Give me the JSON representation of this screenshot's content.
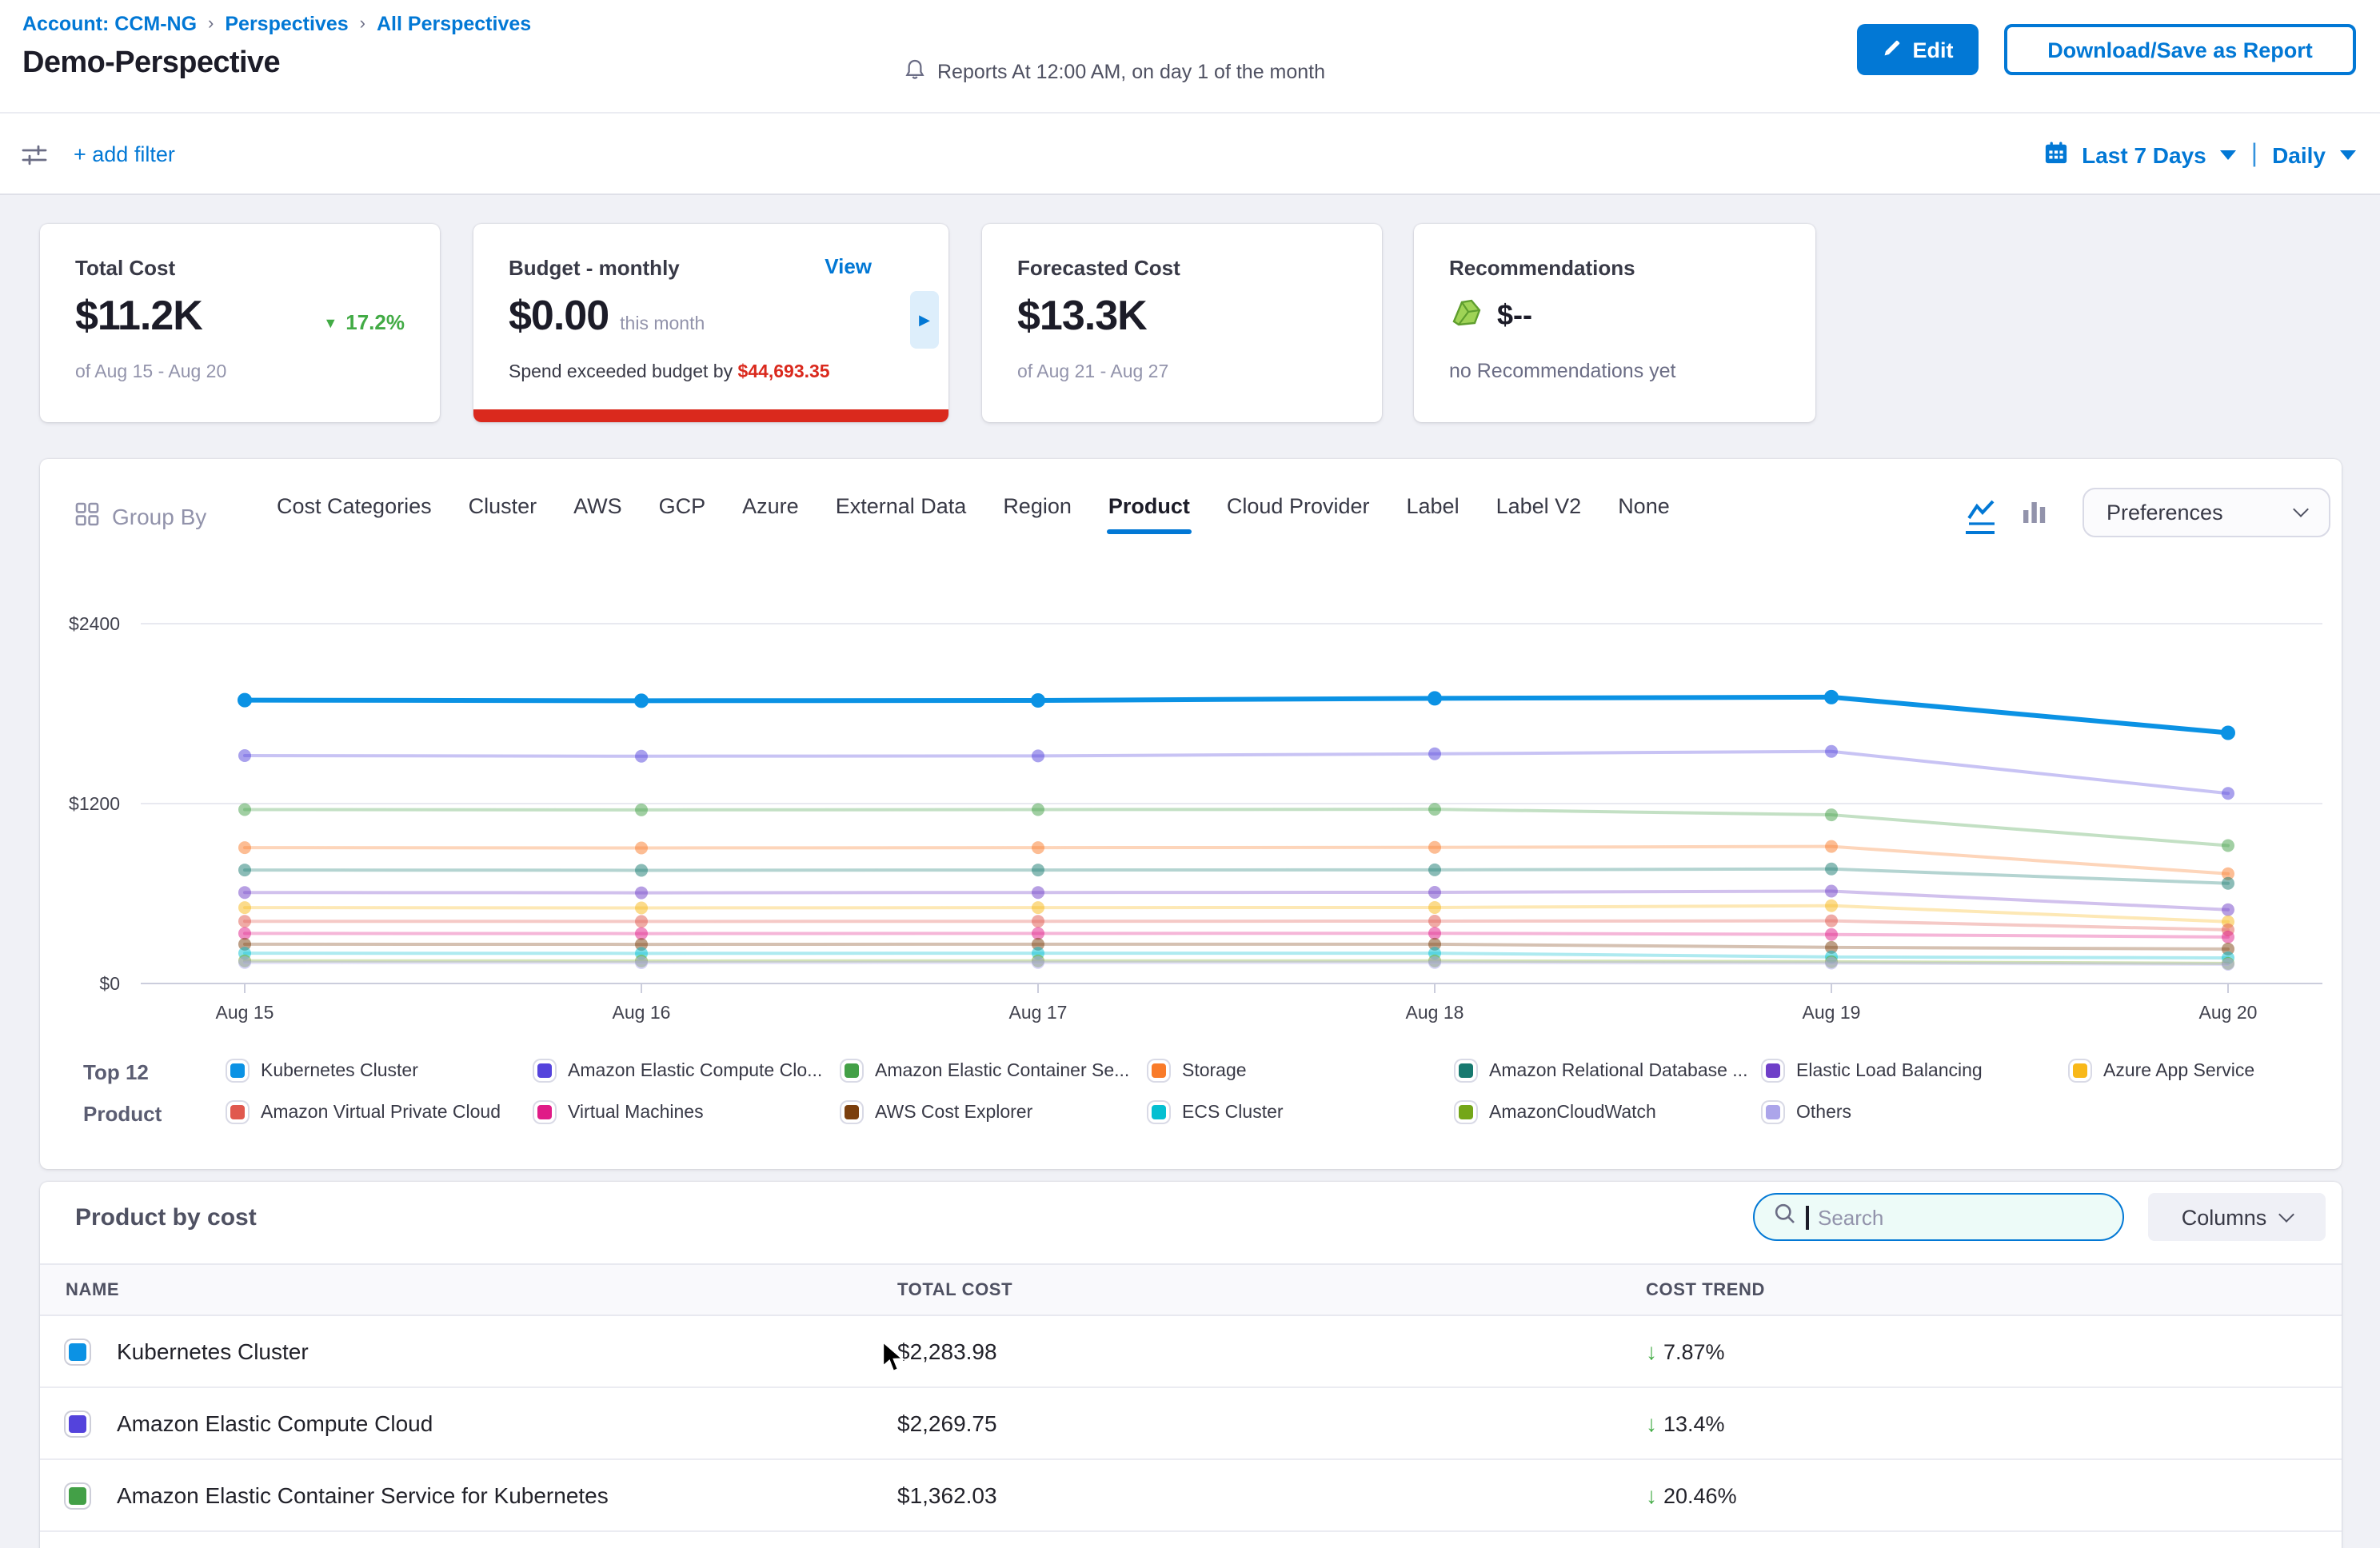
{
  "header": {
    "breadcrumb": [
      {
        "label": "Account: CCM-NG"
      },
      {
        "label": "Perspectives"
      },
      {
        "label": "All Perspectives"
      }
    ],
    "title": "Demo-Perspective",
    "reports_note": "Reports At 12:00 AM, on day 1 of the month",
    "edit_label": "Edit",
    "download_label": "Download/Save as Report"
  },
  "filter_bar": {
    "add_filter_label": "+ add filter",
    "date_range_label": "Last 7 Days",
    "granularity_label": "Daily"
  },
  "cards": {
    "total_cost": {
      "title": "Total Cost",
      "value": "$11.2K",
      "delta": "17.2%",
      "delta_direction": "down",
      "delta_color": "#42ab45",
      "period": "of Aug 15 - Aug 20"
    },
    "budget": {
      "title": "Budget - monthly",
      "view_label": "View",
      "value": "$0.00",
      "value_suffix": "this month",
      "overspend_text": "Spend exceeded budget by ",
      "overspend_amount": "$44,693.35",
      "bar_color": "#da291d"
    },
    "forecasted": {
      "title": "Forecasted Cost",
      "value": "$13.3K",
      "period": "of Aug 21 - Aug 27"
    },
    "recommendations": {
      "title": "Recommendations",
      "value": "$--",
      "note": "no Recommendations yet"
    }
  },
  "group_by": {
    "label": "Group By",
    "tabs": [
      "Cost Categories",
      "Cluster",
      "AWS",
      "GCP",
      "Azure",
      "External Data",
      "Region",
      "Product",
      "Cloud Provider",
      "Label",
      "Label V2",
      "None"
    ],
    "active_tab": "Product",
    "preferences_label": "Preferences"
  },
  "chart_data": {
    "type": "line",
    "x": [
      "Aug 15",
      "Aug 16",
      "Aug 17",
      "Aug 18",
      "Aug 19",
      "Aug 20"
    ],
    "ylim": [
      0,
      2400
    ],
    "y_ticks": [
      {
        "label": "$0",
        "value": 0
      },
      {
        "label": "$1200",
        "value": 1200
      },
      {
        "label": "$2400",
        "value": 2400
      }
    ],
    "grid": true,
    "legend_position": "bottom",
    "series": [
      {
        "name": "Kubernetes Cluster",
        "color": "#0b92e4",
        "emphasis": true,
        "values": [
          1890,
          1886,
          1888,
          1902,
          1910,
          1672
        ]
      },
      {
        "name": "Amazon Elastic Compute Cloud",
        "color": "#5443dc",
        "emphasis": false,
        "values": [
          1520,
          1516,
          1518,
          1532,
          1548,
          1268
        ]
      },
      {
        "name": "Amazon Elastic Container Service for Kubernetes",
        "color": "#43a047",
        "emphasis": false,
        "values": [
          1160,
          1158,
          1160,
          1162,
          1125,
          920
        ]
      },
      {
        "name": "Storage",
        "color": "#f97b29",
        "emphasis": false,
        "values": [
          906,
          904,
          906,
          908,
          914,
          732
        ]
      },
      {
        "name": "Amazon Relational Database Service",
        "color": "#17796f",
        "emphasis": false,
        "values": [
          757,
          755,
          757,
          758,
          764,
          668
        ]
      },
      {
        "name": "Elastic Load Balancing",
        "color": "#6f3fc8",
        "emphasis": false,
        "values": [
          607,
          605,
          607,
          608,
          616,
          492
        ]
      },
      {
        "name": "Azure App Service",
        "color": "#f8b819",
        "emphasis": false,
        "values": [
          506,
          504,
          506,
          507,
          519,
          412
        ]
      },
      {
        "name": "Amazon Virtual Private Cloud",
        "color": "#e0584e",
        "emphasis": false,
        "values": [
          415,
          414,
          415,
          416,
          418,
          358
        ]
      },
      {
        "name": "Virtual Machines",
        "color": "#e01b87",
        "emphasis": false,
        "values": [
          334,
          333,
          334,
          335,
          327,
          310
        ]
      },
      {
        "name": "AWS Cost Explorer",
        "color": "#7b3f0e",
        "emphasis": false,
        "values": [
          262,
          261,
          262,
          262,
          241,
          230
        ]
      },
      {
        "name": "ECS Cluster",
        "color": "#04bfd1",
        "emphasis": false,
        "values": [
          202,
          201,
          202,
          202,
          177,
          171
        ]
      },
      {
        "name": "AmazonCloudWatch",
        "color": "#74a619",
        "emphasis": false,
        "values": [
          151,
          150,
          151,
          151,
          145,
          134
        ]
      },
      {
        "name": "Others",
        "color": "#aca5ea",
        "emphasis": false,
        "values": [
          140,
          139,
          140,
          140,
          136,
          128
        ]
      }
    ]
  },
  "legend": {
    "title_line1": "Top 12",
    "title_line2": "Product",
    "items": [
      {
        "label": "Kubernetes Cluster",
        "color": "#0b92e4"
      },
      {
        "label": "Amazon Elastic Compute Clo...",
        "color": "#5443dc"
      },
      {
        "label": "Amazon Elastic Container Se...",
        "color": "#43a047"
      },
      {
        "label": "Storage",
        "color": "#f97b29"
      },
      {
        "label": "Amazon Relational Database ...",
        "color": "#17796f"
      },
      {
        "label": "Elastic Load Balancing",
        "color": "#6f3fc8"
      },
      {
        "label": "Azure App Service",
        "color": "#f8b819"
      },
      {
        "label": "Amazon Virtual Private Cloud",
        "color": "#e0584e"
      },
      {
        "label": "Virtual Machines",
        "color": "#e01b87"
      },
      {
        "label": "AWS Cost Explorer",
        "color": "#7b3f0e"
      },
      {
        "label": "ECS Cluster",
        "color": "#04bfd1"
      },
      {
        "label": "AmazonCloudWatch",
        "color": "#74a619"
      },
      {
        "label": "Others",
        "color": "#aca5ea"
      }
    ]
  },
  "table": {
    "section_title": "Product by cost",
    "search_placeholder": "Search",
    "columns_label": "Columns",
    "headers": [
      "NAME",
      "TOTAL COST",
      "COST TREND"
    ],
    "rows": [
      {
        "name": "Kubernetes Cluster",
        "color": "#0b92e4",
        "total_cost": "$2,283.98",
        "trend": "7.87%",
        "trend_direction": "down"
      },
      {
        "name": "Amazon Elastic Compute Cloud",
        "color": "#5443dc",
        "total_cost": "$2,269.75",
        "trend": "13.4%",
        "trend_direction": "down"
      },
      {
        "name": "Amazon Elastic Container Service for Kubernetes",
        "color": "#43a047",
        "total_cost": "$1,362.03",
        "trend": "20.46%",
        "trend_direction": "down"
      }
    ]
  }
}
